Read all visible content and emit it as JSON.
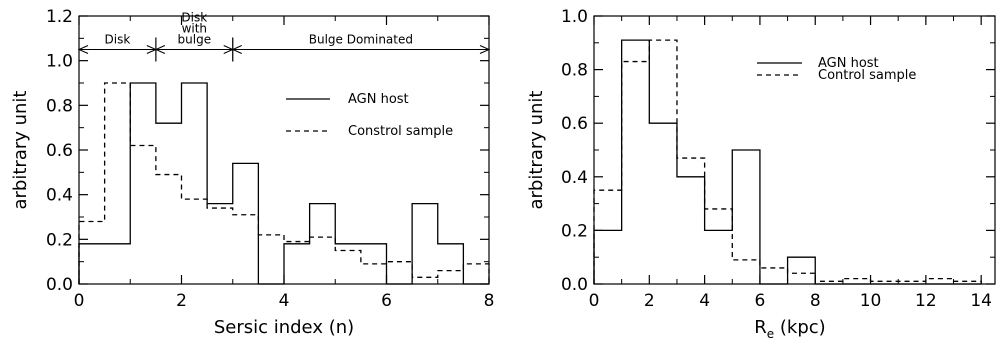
{
  "chart_data": [
    {
      "type": "histogram",
      "xlabel": "Sersic index (n)",
      "ylabel": "arbitrary unit",
      "xlim": [
        0,
        8
      ],
      "ylim": [
        0,
        1.2
      ],
      "xticks": [
        "0",
        "2",
        "4",
        "6",
        "8"
      ],
      "yticks": [
        "0.0",
        "0.2",
        "0.4",
        "0.6",
        "0.8",
        "1.0",
        "1.2"
      ],
      "grid": false,
      "legend_position": "right",
      "bin_edges": [
        0,
        0.5,
        1.0,
        1.5,
        2.0,
        2.5,
        3.0,
        3.5,
        4.0,
        4.5,
        5.0,
        5.5,
        6.0,
        6.5,
        7.0,
        7.5,
        8.0
      ],
      "series": [
        {
          "name": "AGN host",
          "style": "solid",
          "values": [
            0.18,
            0.18,
            0.9,
            0.72,
            0.9,
            0.36,
            0.54,
            0.0,
            0.18,
            0.36,
            0.18,
            0.18,
            0.0,
            0.36,
            0.18,
            0.0
          ]
        },
        {
          "name": "Constrol sample",
          "style": "dashed",
          "values": [
            0.28,
            0.9,
            0.62,
            0.49,
            0.38,
            0.34,
            0.31,
            0.22,
            0.19,
            0.21,
            0.15,
            0.09,
            0.1,
            0.03,
            0.06,
            0.09
          ]
        }
      ],
      "annotations": [
        {
          "label": "Disk",
          "from": 0,
          "to": 1.5
        },
        {
          "label": "Disk\nwith\nbulge",
          "from": 1.5,
          "to": 3.0
        },
        {
          "label": "Bulge Dominated",
          "from": 3.0,
          "to": 8.0
        }
      ],
      "annotation_y": 1.05
    },
    {
      "type": "histogram",
      "xlabel_main": "R",
      "xlabel_sub": "e",
      "xlabel_unit": " (kpc)",
      "ylabel": "arbitrary unit",
      "xlim": [
        0,
        14.5
      ],
      "ylim": [
        0,
        1.0
      ],
      "xticks": [
        "0",
        "2",
        "4",
        "6",
        "8",
        "10",
        "12",
        "14"
      ],
      "yticks": [
        "0.0",
        "0.2",
        "0.4",
        "0.6",
        "0.8",
        "1.0"
      ],
      "grid": false,
      "legend_position": "top-right",
      "bin_edges": [
        0,
        1,
        2,
        3,
        4,
        5,
        6,
        7,
        8,
        9,
        10,
        11,
        12,
        13,
        14
      ],
      "series": [
        {
          "name": "AGN host",
          "style": "solid",
          "values": [
            0.2,
            0.91,
            0.6,
            0.4,
            0.2,
            0.5,
            0.0,
            0.1,
            0.0,
            0.0,
            0.0,
            0.0,
            0.0,
            0.0
          ]
        },
        {
          "name": "Control sample",
          "style": "dashed",
          "values": [
            0.35,
            0.83,
            0.91,
            0.47,
            0.28,
            0.09,
            0.06,
            0.04,
            0.01,
            0.02,
            0.01,
            0.01,
            0.02,
            0.01
          ]
        }
      ]
    }
  ]
}
